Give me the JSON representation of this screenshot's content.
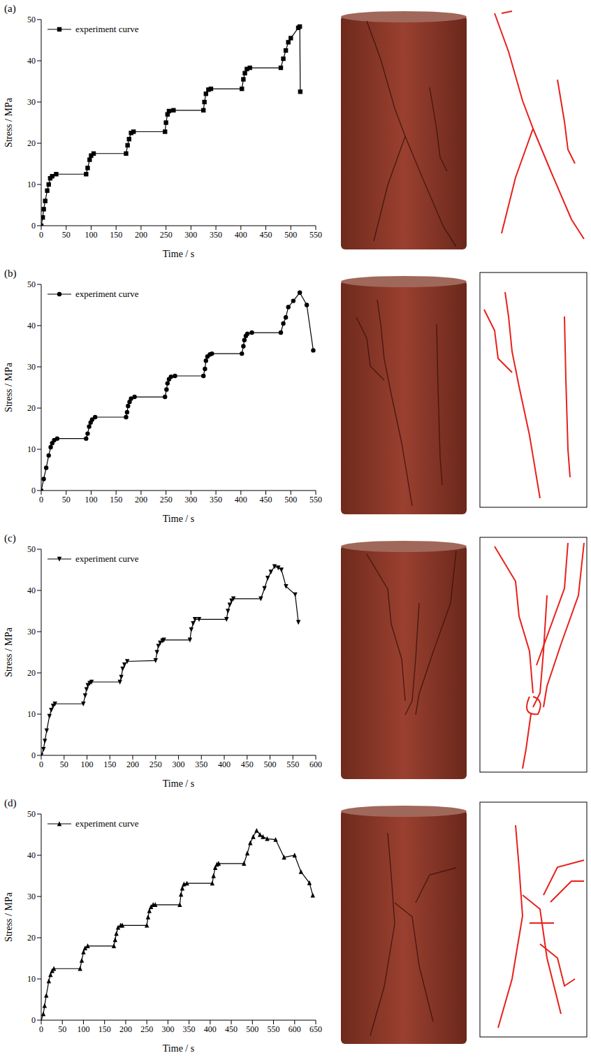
{
  "chart_data": [
    {
      "type": "line",
      "annotations": [
        "(a)"
      ],
      "xlabel": "Time / s",
      "ylabel": "Stress / MPa",
      "xlim": [
        0,
        550
      ],
      "xticks": [
        0,
        50,
        100,
        150,
        200,
        250,
        300,
        350,
        400,
        450,
        500,
        550
      ],
      "ylim": [
        0,
        50
      ],
      "yticks": [
        0,
        10,
        20,
        30,
        40,
        50
      ],
      "legend": "upper left",
      "x": [
        0,
        3,
        5,
        8,
        12,
        15,
        18,
        22,
        30,
        90,
        93,
        97,
        100,
        105,
        170,
        173,
        176,
        180,
        185,
        248,
        250,
        253,
        256,
        265,
        325,
        327,
        330,
        335,
        340,
        402,
        405,
        408,
        412,
        418,
        480,
        485,
        490,
        495,
        500,
        515,
        518,
        519
      ],
      "series": [
        {
          "name": "experiment curve",
          "color": "#000000",
          "marker": "square",
          "values": [
            0,
            2,
            4,
            6,
            8.5,
            10,
            11.5,
            12,
            12.5,
            12.5,
            14,
            16,
            17,
            17.5,
            17.5,
            19.5,
            21,
            22.5,
            22.8,
            22.8,
            25,
            27,
            27.8,
            28,
            28,
            30,
            32,
            33,
            33.2,
            33.2,
            35.5,
            37,
            38,
            38.3,
            38.3,
            40.5,
            42.5,
            44.5,
            45.5,
            48,
            48.3,
            32.5
          ]
        }
      ]
    },
    {
      "type": "line",
      "annotations": [
        "(b)"
      ],
      "xlabel": "Time / s",
      "ylabel": "Stress / MPa",
      "xlim": [
        0,
        550
      ],
      "xticks": [
        0,
        50,
        100,
        150,
        200,
        250,
        300,
        350,
        400,
        450,
        500,
        550
      ],
      "ylim": [
        0,
        50
      ],
      "yticks": [
        0,
        10,
        20,
        30,
        40,
        50
      ],
      "legend": "upper left",
      "x": [
        0,
        5,
        10,
        15,
        19,
        22,
        26,
        32,
        90,
        93,
        96,
        99,
        102,
        108,
        170,
        172,
        174,
        177,
        180,
        187,
        248,
        251,
        253,
        256,
        260,
        268,
        325,
        328,
        330,
        333,
        338,
        342,
        402,
        405,
        407,
        410,
        413,
        422,
        480,
        485,
        490,
        495,
        505,
        518,
        532,
        545
      ],
      "series": [
        {
          "name": "experiment curve",
          "color": "#000000",
          "marker": "circle",
          "values": [
            0,
            2.8,
            5.5,
            8.5,
            10.5,
            11.5,
            12.2,
            12.6,
            12.6,
            13.8,
            15.5,
            16.5,
            17.2,
            17.8,
            17.8,
            19,
            20.5,
            21.5,
            22.3,
            22.7,
            22.7,
            24.5,
            26,
            27,
            27.6,
            27.8,
            27.8,
            29.5,
            31.5,
            32.5,
            33,
            33.2,
            33.2,
            35,
            36.5,
            37.5,
            38,
            38.3,
            38.3,
            40.5,
            42,
            44.5,
            46,
            48,
            45,
            34
          ]
        }
      ]
    },
    {
      "type": "line",
      "annotations": [
        "(c)"
      ],
      "xlabel": "Time / s",
      "ylabel": "Stress / MPa",
      "xlim": [
        0,
        600
      ],
      "xticks": [
        0,
        50,
        100,
        150,
        200,
        250,
        300,
        350,
        400,
        450,
        500,
        550,
        600
      ],
      "ylim": [
        0,
        50
      ],
      "yticks": [
        0,
        10,
        20,
        30,
        40,
        50
      ],
      "legend": "upper left",
      "x": [
        0,
        5,
        8,
        12,
        18,
        22,
        26,
        30,
        92,
        96,
        99,
        102,
        106,
        110,
        172,
        175,
        178,
        182,
        188,
        250,
        253,
        256,
        260,
        265,
        268,
        325,
        328,
        332,
        336,
        345,
        405,
        408,
        412,
        416,
        420,
        480,
        488,
        495,
        502,
        510,
        518,
        525,
        535,
        555,
        562
      ],
      "series": [
        {
          "name": "experiment curve",
          "color": "#000000",
          "marker": "triangle-down",
          "values": [
            0,
            1.5,
            3.5,
            6,
            9.5,
            11,
            12,
            12.5,
            12.5,
            14.5,
            16,
            17,
            17.5,
            17.8,
            17.8,
            19,
            21,
            22,
            22.8,
            23,
            25,
            26.5,
            27.3,
            27.8,
            28,
            28,
            30.5,
            32,
            33,
            33,
            33,
            35,
            36.5,
            37.5,
            38,
            38,
            40.5,
            43,
            44.5,
            45.8,
            45.5,
            45,
            41,
            39,
            32.3
          ]
        }
      ]
    },
    {
      "type": "line",
      "annotations": [
        "(d)"
      ],
      "xlabel": "Time / s",
      "ylabel": "Stress / MPa",
      "xlim": [
        0,
        650
      ],
      "xticks": [
        0,
        50,
        100,
        150,
        200,
        250,
        300,
        350,
        400,
        450,
        500,
        550,
        600,
        650
      ],
      "ylim": [
        0,
        50
      ],
      "yticks": [
        0,
        10,
        20,
        30,
        40,
        50
      ],
      "legend": "upper left",
      "x": [
        0,
        5,
        8,
        12,
        18,
        22,
        26,
        30,
        92,
        96,
        100,
        104,
        110,
        172,
        175,
        178,
        182,
        188,
        192,
        250,
        253,
        256,
        260,
        265,
        270,
        328,
        331,
        334,
        338,
        345,
        405,
        408,
        412,
        416,
        420,
        480,
        488,
        495,
        502,
        510,
        518,
        525,
        535,
        555,
        575,
        600,
        615,
        635,
        643
      ],
      "series": [
        {
          "name": "experiment curve",
          "color": "#000000",
          "marker": "triangle",
          "values": [
            0,
            1.5,
            3.5,
            6,
            9.5,
            11,
            12,
            12.5,
            12.5,
            14.5,
            16.5,
            17.5,
            18,
            18,
            19.5,
            21,
            22.5,
            23,
            23,
            23,
            25,
            26.5,
            27.5,
            28,
            28,
            28,
            30.5,
            32,
            33,
            33.2,
            33.2,
            35,
            37,
            37.8,
            38,
            38,
            40.5,
            43,
            44.5,
            46,
            45,
            44.5,
            44,
            43.8,
            39.5,
            40,
            36,
            33.3,
            30.3
          ]
        }
      ]
    }
  ]
}
